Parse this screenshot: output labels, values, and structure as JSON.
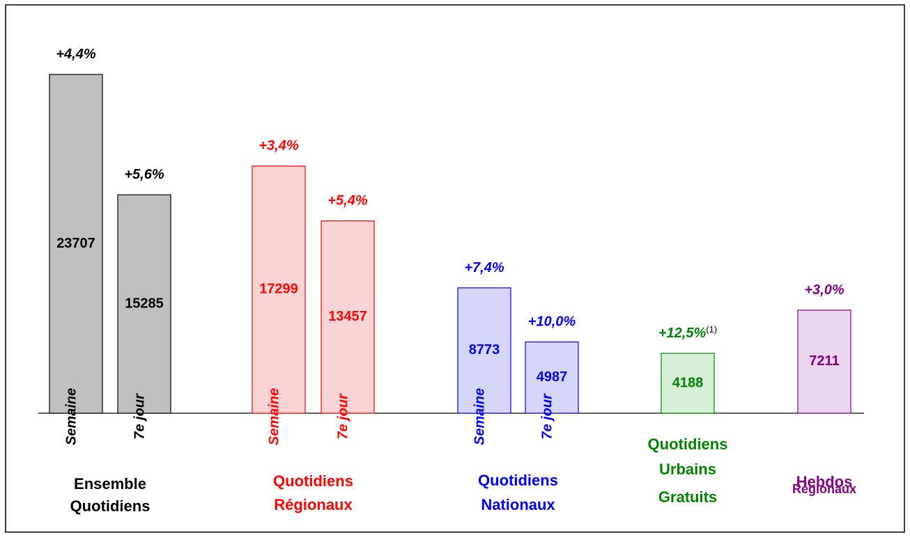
{
  "chart_data": {
    "type": "bar",
    "ylim": [
      0,
      25000
    ],
    "groups": [
      {
        "name_lines": [
          "Ensemble",
          "Quotidiens"
        ],
        "color": "#000000",
        "fill": "#c0c0c0",
        "bars": [
          {
            "label": "Semaine",
            "value": 23707,
            "growth": "+4,4%"
          },
          {
            "label": "7e jour",
            "value": 15285,
            "growth": "+5,6%"
          }
        ]
      },
      {
        "name_lines": [
          "Quotidiens",
          "Régionaux"
        ],
        "color": "#ff0000",
        "fill": "#f8d4d4",
        "bars": [
          {
            "label": "Semaine",
            "value": 17299,
            "growth": "+3,4%"
          },
          {
            "label": "7e jour",
            "value": 13457,
            "growth": "+5,4%"
          }
        ]
      },
      {
        "name_lines": [
          "Quotidiens",
          "Nationaux"
        ],
        "color": "#0000ff",
        "fill": "#d6d6f8",
        "bars": [
          {
            "label": "Semaine",
            "value": 8773,
            "growth": "+7,4%"
          },
          {
            "label": "7e jour",
            "value": 4987,
            "growth": "+10,0%"
          }
        ]
      },
      {
        "name_lines": [
          "Quotidiens",
          "Urbains",
          "Gratuits"
        ],
        "color": "#008000",
        "fill": "#d6efd6",
        "bars": [
          {
            "value": 4188,
            "growth": "+12,5%",
            "note": "(1)"
          }
        ]
      },
      {
        "name_lines": [
          "Hebdos",
          "Régionaux"
        ],
        "color": "#800080",
        "fill": "#ead6ee",
        "bars": [
          {
            "value": 7211,
            "growth": "+3,0%"
          }
        ]
      }
    ]
  }
}
